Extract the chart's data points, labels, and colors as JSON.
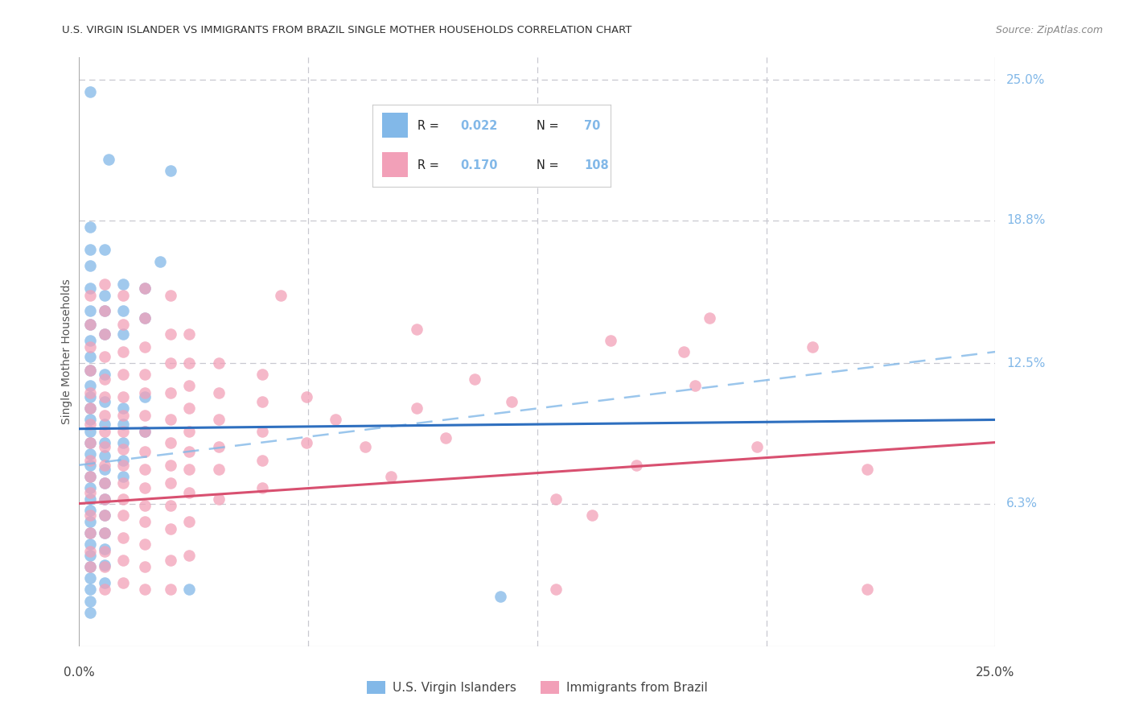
{
  "title": "U.S. VIRGIN ISLANDER VS IMMIGRANTS FROM BRAZIL SINGLE MOTHER HOUSEHOLDS CORRELATION CHART",
  "source": "Source: ZipAtlas.com",
  "ylabel": "Single Mother Households",
  "ytick_labels": [
    "25.0%",
    "18.8%",
    "12.5%",
    "6.3%"
  ],
  "ytick_values": [
    0.25,
    0.188,
    0.125,
    0.063
  ],
  "xlim": [
    0.0,
    0.25
  ],
  "ylim": [
    0.0,
    0.26
  ],
  "color_vi": "#82B8E8",
  "color_brazil": "#F2A0B8",
  "color_vi_line": "#2E6FBF",
  "color_brazil_line": "#D85070",
  "color_vi_dashed": "#82B8E8",
  "background_color": "#FFFFFF",
  "grid_color": "#C8C8D0",
  "title_color": "#555555",
  "right_label_color": "#82B8E8",
  "vi_line_y0": 0.096,
  "vi_line_y1": 0.1,
  "brazil_line_y0": 0.063,
  "brazil_line_y1": 0.09,
  "dashed_line_y0": 0.08,
  "dashed_line_y1": 0.13,
  "scatter_vi": [
    [
      0.003,
      0.245
    ],
    [
      0.008,
      0.215
    ],
    [
      0.003,
      0.185
    ],
    [
      0.003,
      0.175
    ],
    [
      0.003,
      0.168
    ],
    [
      0.003,
      0.158
    ],
    [
      0.003,
      0.148
    ],
    [
      0.003,
      0.142
    ],
    [
      0.003,
      0.135
    ],
    [
      0.003,
      0.128
    ],
    [
      0.003,
      0.122
    ],
    [
      0.003,
      0.115
    ],
    [
      0.003,
      0.11
    ],
    [
      0.003,
      0.105
    ],
    [
      0.003,
      0.1
    ],
    [
      0.003,
      0.095
    ],
    [
      0.003,
      0.09
    ],
    [
      0.003,
      0.085
    ],
    [
      0.003,
      0.08
    ],
    [
      0.003,
      0.075
    ],
    [
      0.003,
      0.07
    ],
    [
      0.003,
      0.065
    ],
    [
      0.003,
      0.06
    ],
    [
      0.003,
      0.055
    ],
    [
      0.003,
      0.05
    ],
    [
      0.003,
      0.045
    ],
    [
      0.003,
      0.04
    ],
    [
      0.003,
      0.035
    ],
    [
      0.003,
      0.03
    ],
    [
      0.003,
      0.025
    ],
    [
      0.003,
      0.02
    ],
    [
      0.003,
      0.015
    ],
    [
      0.007,
      0.175
    ],
    [
      0.007,
      0.155
    ],
    [
      0.007,
      0.148
    ],
    [
      0.007,
      0.138
    ],
    [
      0.007,
      0.12
    ],
    [
      0.007,
      0.108
    ],
    [
      0.007,
      0.098
    ],
    [
      0.007,
      0.09
    ],
    [
      0.007,
      0.084
    ],
    [
      0.007,
      0.078
    ],
    [
      0.007,
      0.072
    ],
    [
      0.007,
      0.065
    ],
    [
      0.007,
      0.058
    ],
    [
      0.007,
      0.05
    ],
    [
      0.007,
      0.043
    ],
    [
      0.007,
      0.036
    ],
    [
      0.007,
      0.028
    ],
    [
      0.012,
      0.16
    ],
    [
      0.012,
      0.148
    ],
    [
      0.012,
      0.138
    ],
    [
      0.012,
      0.105
    ],
    [
      0.012,
      0.098
    ],
    [
      0.012,
      0.09
    ],
    [
      0.012,
      0.082
    ],
    [
      0.012,
      0.075
    ],
    [
      0.018,
      0.158
    ],
    [
      0.018,
      0.145
    ],
    [
      0.018,
      0.11
    ],
    [
      0.018,
      0.095
    ],
    [
      0.022,
      0.17
    ],
    [
      0.025,
      0.21
    ],
    [
      0.03,
      0.025
    ],
    [
      0.115,
      0.022
    ]
  ],
  "scatter_brazil": [
    [
      0.003,
      0.155
    ],
    [
      0.003,
      0.142
    ],
    [
      0.003,
      0.132
    ],
    [
      0.003,
      0.122
    ],
    [
      0.003,
      0.112
    ],
    [
      0.003,
      0.105
    ],
    [
      0.003,
      0.098
    ],
    [
      0.003,
      0.09
    ],
    [
      0.003,
      0.082
    ],
    [
      0.003,
      0.075
    ],
    [
      0.003,
      0.068
    ],
    [
      0.003,
      0.058
    ],
    [
      0.003,
      0.05
    ],
    [
      0.003,
      0.042
    ],
    [
      0.003,
      0.035
    ],
    [
      0.007,
      0.16
    ],
    [
      0.007,
      0.148
    ],
    [
      0.007,
      0.138
    ],
    [
      0.007,
      0.128
    ],
    [
      0.007,
      0.118
    ],
    [
      0.007,
      0.11
    ],
    [
      0.007,
      0.102
    ],
    [
      0.007,
      0.095
    ],
    [
      0.007,
      0.088
    ],
    [
      0.007,
      0.08
    ],
    [
      0.007,
      0.072
    ],
    [
      0.007,
      0.065
    ],
    [
      0.007,
      0.058
    ],
    [
      0.007,
      0.05
    ],
    [
      0.007,
      0.042
    ],
    [
      0.007,
      0.035
    ],
    [
      0.007,
      0.025
    ],
    [
      0.012,
      0.155
    ],
    [
      0.012,
      0.142
    ],
    [
      0.012,
      0.13
    ],
    [
      0.012,
      0.12
    ],
    [
      0.012,
      0.11
    ],
    [
      0.012,
      0.102
    ],
    [
      0.012,
      0.095
    ],
    [
      0.012,
      0.087
    ],
    [
      0.012,
      0.08
    ],
    [
      0.012,
      0.072
    ],
    [
      0.012,
      0.065
    ],
    [
      0.012,
      0.058
    ],
    [
      0.012,
      0.048
    ],
    [
      0.012,
      0.038
    ],
    [
      0.012,
      0.028
    ],
    [
      0.018,
      0.158
    ],
    [
      0.018,
      0.145
    ],
    [
      0.018,
      0.132
    ],
    [
      0.018,
      0.12
    ],
    [
      0.018,
      0.112
    ],
    [
      0.018,
      0.102
    ],
    [
      0.018,
      0.095
    ],
    [
      0.018,
      0.086
    ],
    [
      0.018,
      0.078
    ],
    [
      0.018,
      0.07
    ],
    [
      0.018,
      0.062
    ],
    [
      0.018,
      0.055
    ],
    [
      0.018,
      0.045
    ],
    [
      0.018,
      0.035
    ],
    [
      0.018,
      0.025
    ],
    [
      0.025,
      0.155
    ],
    [
      0.025,
      0.138
    ],
    [
      0.025,
      0.125
    ],
    [
      0.025,
      0.112
    ],
    [
      0.025,
      0.1
    ],
    [
      0.025,
      0.09
    ],
    [
      0.025,
      0.08
    ],
    [
      0.025,
      0.072
    ],
    [
      0.025,
      0.062
    ],
    [
      0.025,
      0.052
    ],
    [
      0.025,
      0.038
    ],
    [
      0.025,
      0.025
    ],
    [
      0.03,
      0.138
    ],
    [
      0.03,
      0.125
    ],
    [
      0.03,
      0.115
    ],
    [
      0.03,
      0.105
    ],
    [
      0.03,
      0.095
    ],
    [
      0.03,
      0.086
    ],
    [
      0.03,
      0.078
    ],
    [
      0.03,
      0.068
    ],
    [
      0.03,
      0.055
    ],
    [
      0.03,
      0.04
    ],
    [
      0.038,
      0.125
    ],
    [
      0.038,
      0.112
    ],
    [
      0.038,
      0.1
    ],
    [
      0.038,
      0.088
    ],
    [
      0.038,
      0.078
    ],
    [
      0.038,
      0.065
    ],
    [
      0.05,
      0.12
    ],
    [
      0.05,
      0.108
    ],
    [
      0.05,
      0.095
    ],
    [
      0.05,
      0.082
    ],
    [
      0.05,
      0.07
    ],
    [
      0.055,
      0.155
    ],
    [
      0.062,
      0.11
    ],
    [
      0.062,
      0.09
    ],
    [
      0.07,
      0.1
    ],
    [
      0.078,
      0.088
    ],
    [
      0.085,
      0.075
    ],
    [
      0.092,
      0.14
    ],
    [
      0.092,
      0.105
    ],
    [
      0.1,
      0.092
    ],
    [
      0.108,
      0.118
    ],
    [
      0.118,
      0.108
    ],
    [
      0.13,
      0.065
    ],
    [
      0.14,
      0.058
    ],
    [
      0.145,
      0.135
    ],
    [
      0.152,
      0.08
    ],
    [
      0.165,
      0.13
    ],
    [
      0.168,
      0.115
    ],
    [
      0.172,
      0.145
    ],
    [
      0.185,
      0.088
    ],
    [
      0.2,
      0.132
    ],
    [
      0.215,
      0.078
    ],
    [
      0.215,
      0.025
    ],
    [
      0.13,
      0.025
    ]
  ]
}
